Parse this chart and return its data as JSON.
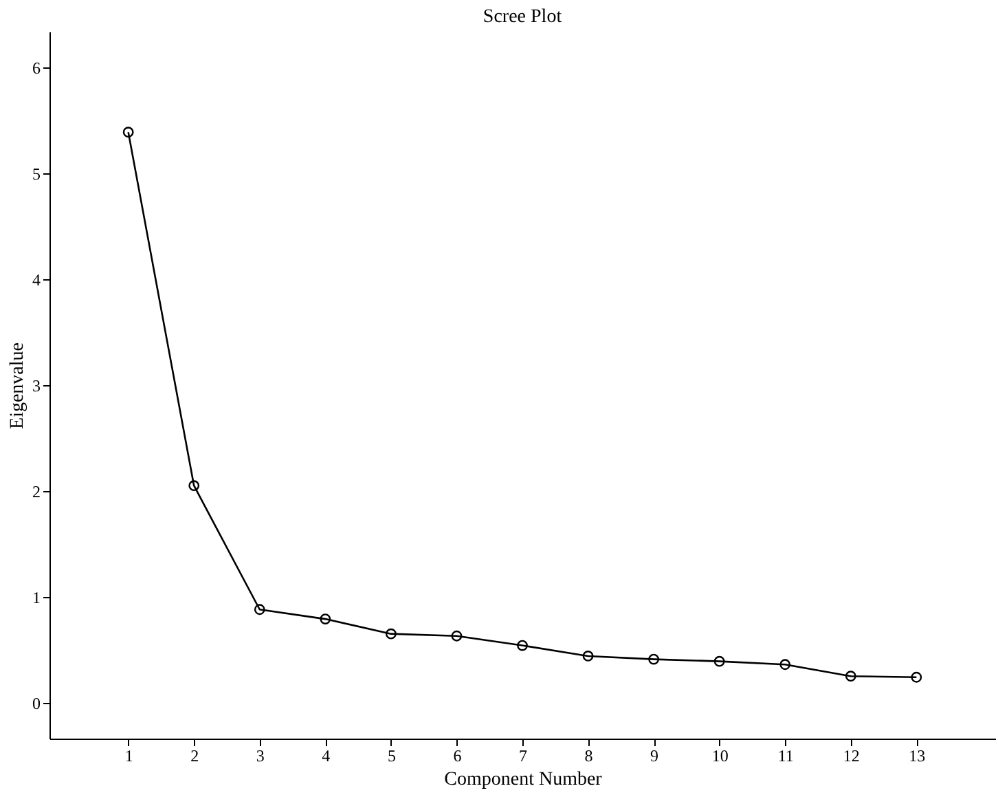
{
  "chart_data": {
    "type": "line",
    "title": "Scree Plot",
    "xlabel": "Component Number",
    "ylabel": "Eigenvalue",
    "x": [
      1,
      2,
      3,
      4,
      5,
      6,
      7,
      8,
      9,
      10,
      11,
      12,
      13
    ],
    "series": [
      {
        "color": "#000000",
        "values": [
          5.39,
          2.05,
          0.88,
          0.79,
          0.65,
          0.63,
          0.54,
          0.44,
          0.41,
          0.39,
          0.36,
          0.25,
          0.24
        ]
      }
    ],
    "xlim": [
      -0.2,
      14.2
    ],
    "xticks": [
      1,
      2,
      3,
      4,
      5,
      6,
      7,
      8,
      9,
      10,
      11,
      12,
      13
    ],
    "ylim": [
      -0.34,
      6.34
    ],
    "yticks": [
      0,
      1,
      2,
      3,
      4,
      5,
      6
    ],
    "marker": "circle",
    "line_style": "solid",
    "grid": false,
    "legend": false
  }
}
